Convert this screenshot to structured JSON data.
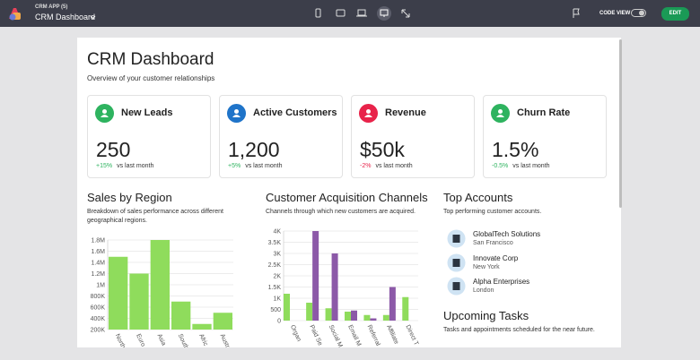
{
  "topbar": {
    "app_name": "CRM APP (5)",
    "page_name": "CRM Dashboard",
    "code_view": "CODE VIEW",
    "edit": "EDIT"
  },
  "header": {
    "title": "CRM Dashboard",
    "subtitle": "Overview of your customer relationships"
  },
  "cards": [
    {
      "title": "New Leads",
      "value": "250",
      "change": "+15%",
      "period": "vs last month",
      "icon_color": "#2eb35f",
      "change_color": "#2eb35f"
    },
    {
      "title": "Active Customers",
      "value": "1,200",
      "change": "+5%",
      "period": "vs last month",
      "icon_color": "#1f74c9",
      "change_color": "#2eb35f"
    },
    {
      "title": "Revenue",
      "value": "$50k",
      "change": "-2%",
      "period": "vs last month",
      "icon_color": "#e8234a",
      "change_color": "#e8234a"
    },
    {
      "title": "Churn Rate",
      "value": "1.5%",
      "change": "-0.5%",
      "period": "vs last month",
      "icon_color": "#2eb35f",
      "change_color": "#2eb35f"
    }
  ],
  "chart_data": [
    {
      "type": "bar",
      "title": "Sales by Region",
      "subtitle": "Breakdown of sales performance across different geographical regions.",
      "categories": [
        "North",
        "Euro",
        "Asia",
        "South",
        "Afric",
        "Austr"
      ],
      "values": [
        1500000,
        1200000,
        1800000,
        700000,
        300000,
        500000
      ],
      "color": "#8fdc5c",
      "ylim": [
        200000,
        1800000
      ],
      "yticks": [
        {
          "value": 200000,
          "label": "200K"
        },
        {
          "value": 400000,
          "label": "400K"
        },
        {
          "value": 600000,
          "label": "600K"
        },
        {
          "value": 800000,
          "label": "800K"
        },
        {
          "value": 1000000,
          "label": "1M"
        },
        {
          "value": 1200000,
          "label": "1.2M"
        },
        {
          "value": 1400000,
          "label": "1.4M"
        },
        {
          "value": 1600000,
          "label": "1.6M"
        },
        {
          "value": 1800000,
          "label": "1.8M"
        }
      ],
      "grid": true
    },
    {
      "type": "bar",
      "title": "Customer Acquisition Channels",
      "subtitle": "Channels through which new customers are acquired.",
      "categories": [
        "Organ",
        "Paid Se",
        "Social M",
        "Email M",
        "Referral",
        "Affiliate",
        "Direct T"
      ],
      "series": [
        {
          "color": "#8fdc5c",
          "values": [
            1200,
            800,
            550,
            400,
            250,
            250,
            1050
          ]
        },
        {
          "color": "#8c59a8",
          "values": [
            0,
            4000,
            3000,
            450,
            100,
            1500,
            0
          ]
        }
      ],
      "ylim": [
        0,
        4000
      ],
      "yticks": [
        0,
        500,
        {
          "value": 1000,
          "label": "1K"
        },
        {
          "value": 1500,
          "label": "1.5K"
        },
        {
          "value": 2000,
          "label": "2K"
        },
        {
          "value": 2500,
          "label": "2.5K"
        },
        {
          "value": 3000,
          "label": "3K"
        },
        {
          "value": 3500,
          "label": "3.5K"
        },
        {
          "value": 4000,
          "label": "4K"
        }
      ],
      "grid": true
    }
  ],
  "accounts": {
    "title": "Top Accounts",
    "subtitle": "Top performing customer accounts.",
    "items": [
      {
        "name": "GlobalTech Solutions",
        "location": "San Francisco"
      },
      {
        "name": "Innovate Corp",
        "location": "New York"
      },
      {
        "name": "Alpha Enterprises",
        "location": "London"
      }
    ]
  },
  "tasks": {
    "title": "Upcoming Tasks",
    "subtitle": "Tasks and appointments scheduled for the near future."
  }
}
